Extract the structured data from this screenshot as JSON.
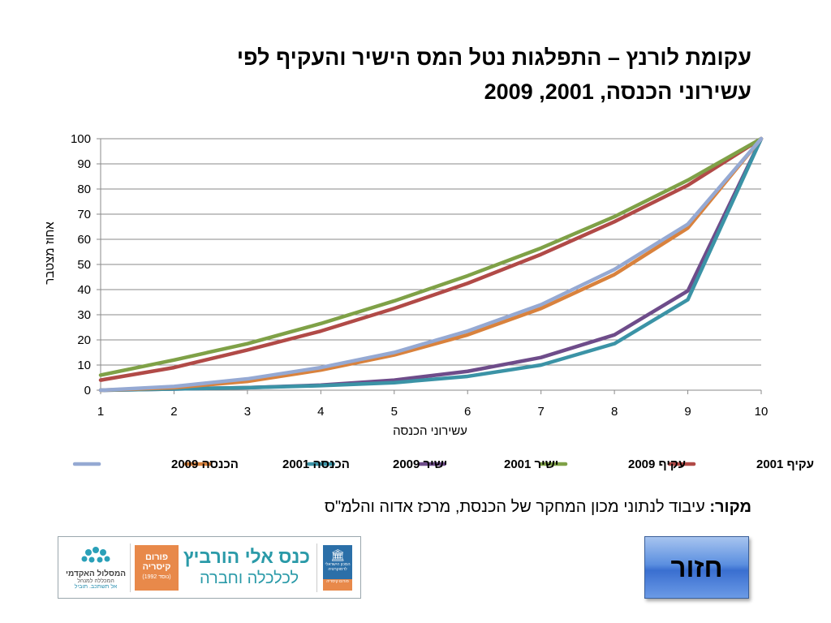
{
  "slide": {
    "title_line1": "עקומת לורנץ – התפלגות נטל המס הישיר והעקיף לפי",
    "title_line2": "עשירוני הכנסה, 2001, 2009",
    "source_label": "מקור:",
    "source_text": " עיבוד לנתוני מכון המחקר של הכנסת, מרכז אדוה והלמ\"ס",
    "back_button": "חזור"
  },
  "logos": {
    "academic_name": "המסלול האקדמי",
    "academic_sub": "המכללה למנהל",
    "academic_tag": "אל תשתכב. תוביל",
    "forum_line1": "פורום",
    "forum_line2": "קיסריה",
    "forum_line3": "(נוסד 1992)",
    "conference_line1": "כנס אלי הורביץ",
    "conference_line2": "לכלכלה וחברה",
    "institute_line1": "המכון הישראלי לדמוקרטיה",
    "institute_line2": "פורום קיסריה"
  },
  "chart_data": {
    "type": "line",
    "title": "",
    "xlabel": "עשירוני הכנסה",
    "ylabel": "אחוז מצטבר",
    "x": [
      1,
      2,
      3,
      4,
      5,
      6,
      7,
      8,
      9,
      10
    ],
    "xlim": [
      1,
      10
    ],
    "ylim": [
      0,
      100
    ],
    "yticks": [
      0,
      10,
      20,
      30,
      40,
      50,
      60,
      70,
      80,
      90,
      100
    ],
    "grid": true,
    "legend_position": "bottom",
    "series": [
      {
        "name": "עקיף 2001",
        "color": "#b14a47",
        "values": [
          4,
          9,
          16,
          23.5,
          32.5,
          42.5,
          54,
          67,
          81.5,
          100
        ]
      },
      {
        "name": "עקיף 2009",
        "color": "#7fa147",
        "values": [
          6,
          12,
          18.5,
          26.5,
          35.5,
          45.5,
          56.5,
          69,
          83.5,
          100
        ]
      },
      {
        "name": "ישיר 2001",
        "color": "#6e4c8a",
        "values": [
          0,
          0.5,
          1,
          2,
          4,
          7.5,
          13,
          22,
          39.5,
          100
        ]
      },
      {
        "name": "ישיר 2009",
        "color": "#3b93a6",
        "values": [
          0,
          0.5,
          1,
          1.8,
          3,
          5.5,
          10,
          18.5,
          36,
          100
        ]
      },
      {
        "name": "הכנסה 2001",
        "color": "#d9823d",
        "values": [
          0,
          1,
          3.5,
          8,
          14,
          22,
          32.5,
          46,
          64.5,
          100
        ]
      },
      {
        "name": "הכנסה 2009",
        "color": "#95a9d3",
        "values": [
          0,
          1.5,
          4.5,
          9,
          15,
          23.5,
          34,
          48,
          66,
          100
        ]
      }
    ]
  }
}
